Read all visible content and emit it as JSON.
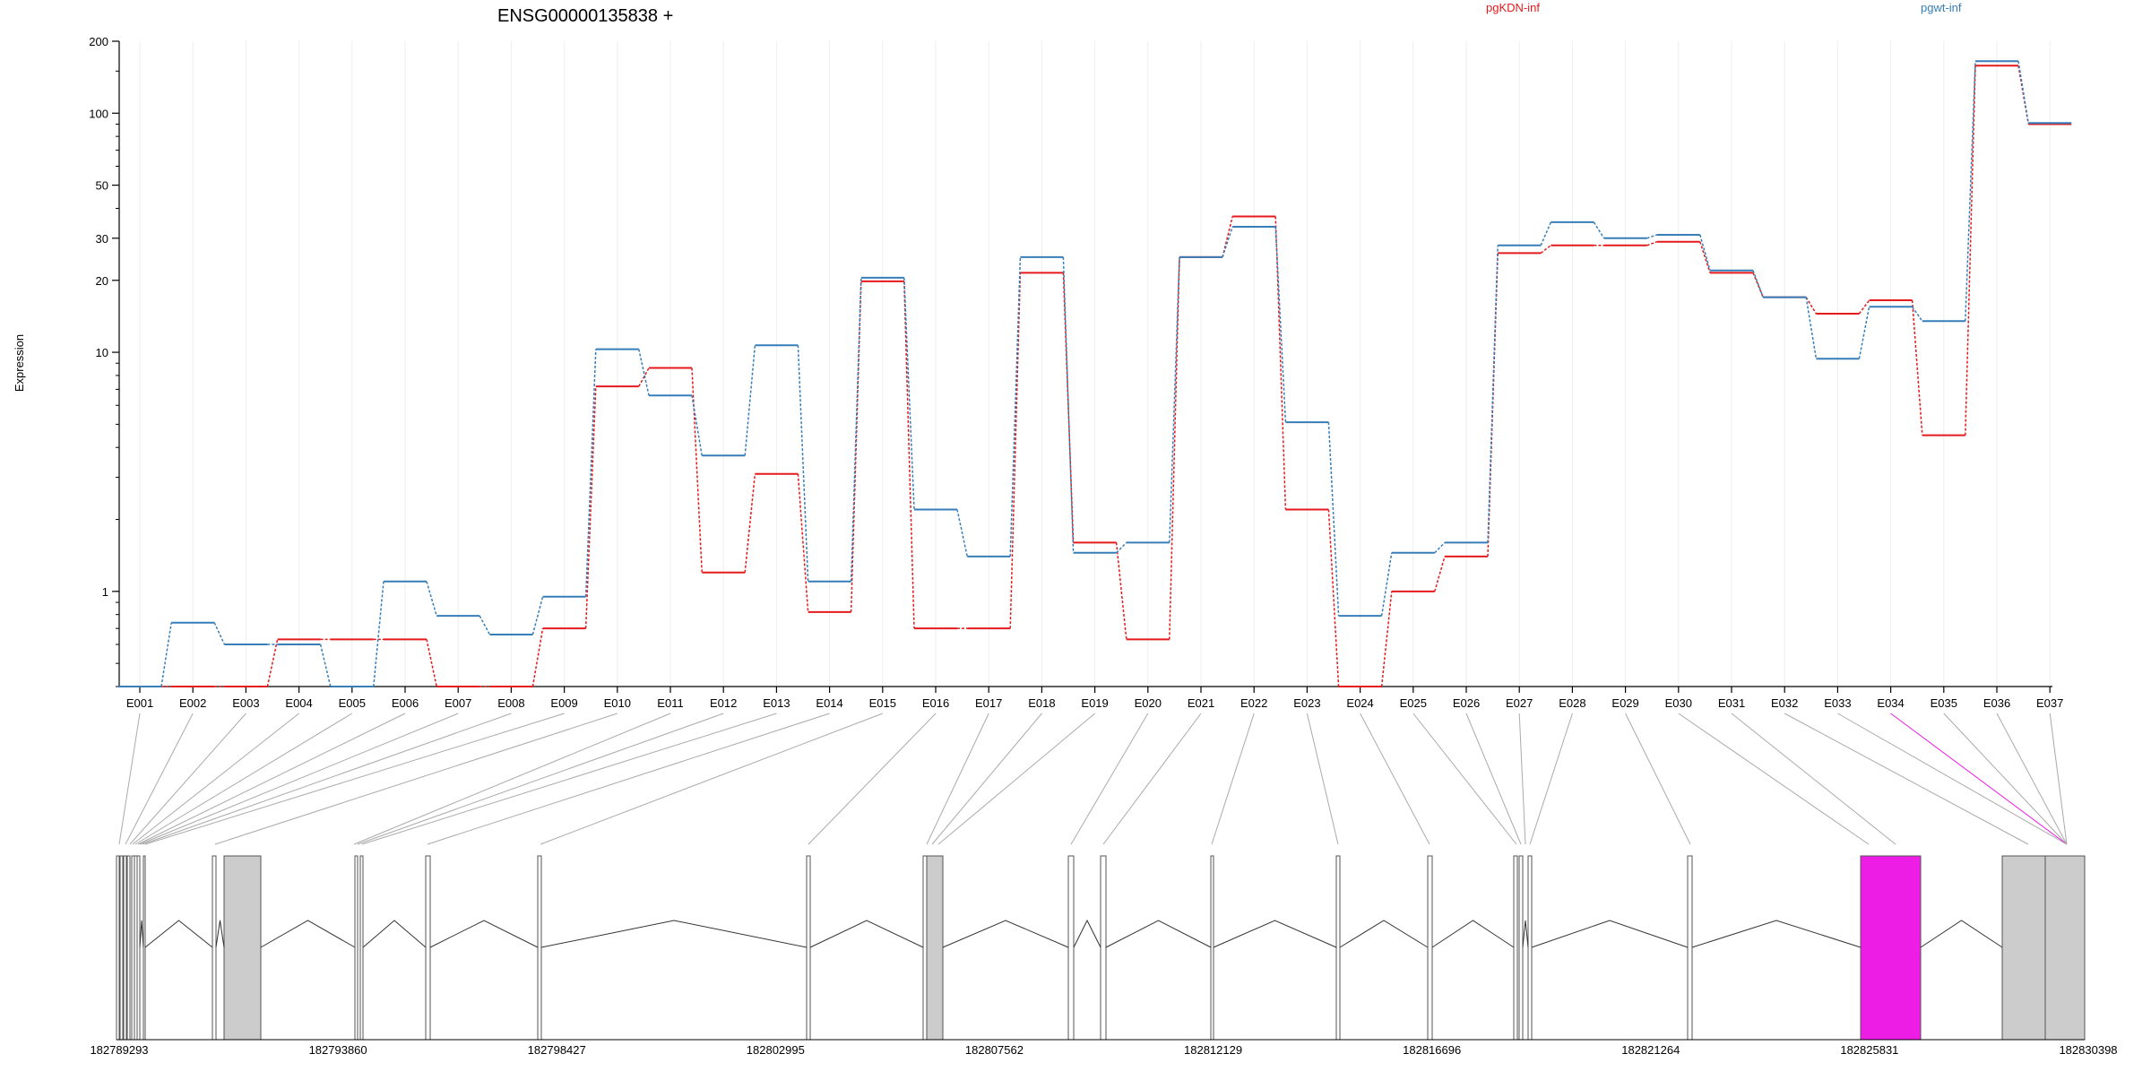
{
  "chart_data": {
    "type": "line",
    "title": "ENSG00000135838 +",
    "ylabel": "Expression",
    "yscale": "log",
    "ylim": [
      0.4,
      200
    ],
    "yticks": [
      1,
      10,
      20,
      30,
      50,
      100,
      200
    ],
    "categories": [
      "E001",
      "E002",
      "E003",
      "E004",
      "E005",
      "E006",
      "E007",
      "E008",
      "E009",
      "E010",
      "E011",
      "E012",
      "E013",
      "E014",
      "E015",
      "E016",
      "E017",
      "E018",
      "E019",
      "E020",
      "E021",
      "E022",
      "E023",
      "E024",
      "E025",
      "E026",
      "E027",
      "E028",
      "E029",
      "E030",
      "E031",
      "E032",
      "E033",
      "E034",
      "E035",
      "E036",
      "E037"
    ],
    "series": [
      {
        "name": "pgKDN-inf",
        "color": "#e41a1c",
        "values": [
          0.4,
          0.4,
          0.4,
          0.63,
          0.63,
          0.63,
          0.4,
          0.4,
          0.7,
          7.2,
          8.6,
          1.2,
          3.1,
          0.82,
          19.8,
          0.7,
          0.7,
          21.5,
          1.6,
          0.63,
          25.0,
          37.0,
          2.2,
          0.4,
          1.0,
          1.4,
          26.0,
          28.0,
          28.0,
          29.0,
          21.5,
          17.0,
          14.5,
          16.5,
          4.5,
          158.0,
          90.0
        ]
      },
      {
        "name": "pgwt-inf",
        "color": "#377eb8",
        "values": [
          0.4,
          0.74,
          0.6,
          0.6,
          0.4,
          1.1,
          0.79,
          0.66,
          0.95,
          10.3,
          6.6,
          3.7,
          10.7,
          1.1,
          20.5,
          2.2,
          1.4,
          25.0,
          1.45,
          1.6,
          25.0,
          33.5,
          5.1,
          0.79,
          1.45,
          1.6,
          28.0,
          35.0,
          30.0,
          31.0,
          22.0,
          17.0,
          9.4,
          15.5,
          13.5,
          165.0,
          91.0
        ]
      }
    ],
    "gene_track": {
      "coordinate_labels": [
        "182789293",
        "182793860",
        "182798427",
        "182802995",
        "182807562",
        "182812129",
        "182816696",
        "182821264",
        "182825831",
        "182830398"
      ],
      "highlight_exon": "E034",
      "highlight_color": "#ee1de6",
      "grey_exon_fill": "#cccccc"
    }
  }
}
